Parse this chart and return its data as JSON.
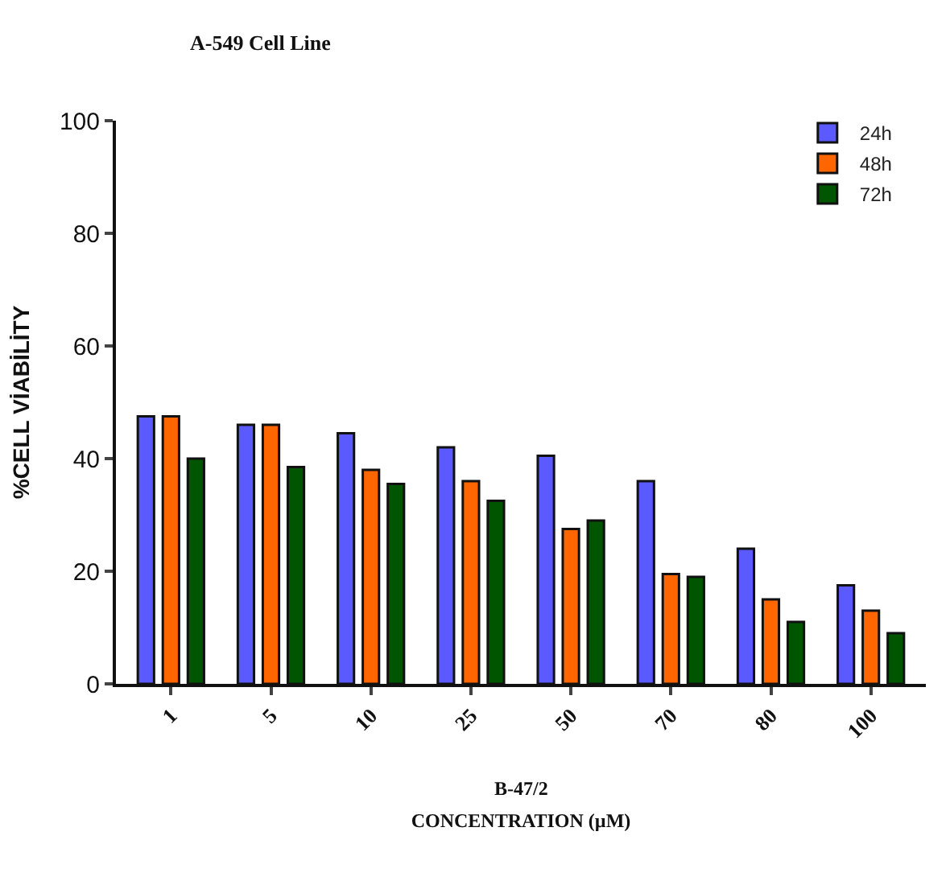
{
  "chart_data": {
    "type": "bar",
    "title": "A-549 Cell Line",
    "xlabel": "CONCENTRATION (µM)",
    "ylabel": "%CELL VİABİLİTY",
    "annotations": [
      "B-47/2"
    ],
    "categories": [
      "1",
      "5",
      "10",
      "25",
      "50",
      "70",
      "80",
      "100"
    ],
    "series": [
      {
        "name": "24h",
        "color": "#5a5aff",
        "values": [
          47.5,
          46,
          44.5,
          42,
          40.5,
          36,
          24,
          17.5
        ]
      },
      {
        "name": "48h",
        "color": "#ff6600",
        "values": [
          47.5,
          46,
          38,
          36,
          27.5,
          19.5,
          15,
          13
        ]
      },
      {
        "name": "72h",
        "color": "#005500",
        "values": [
          40,
          38.5,
          35.5,
          32.5,
          29,
          19,
          11,
          9
        ]
      }
    ],
    "ylim": [
      0,
      100
    ],
    "yticks": [
      0,
      20,
      40,
      60,
      80,
      100
    ],
    "legend": "top right"
  }
}
